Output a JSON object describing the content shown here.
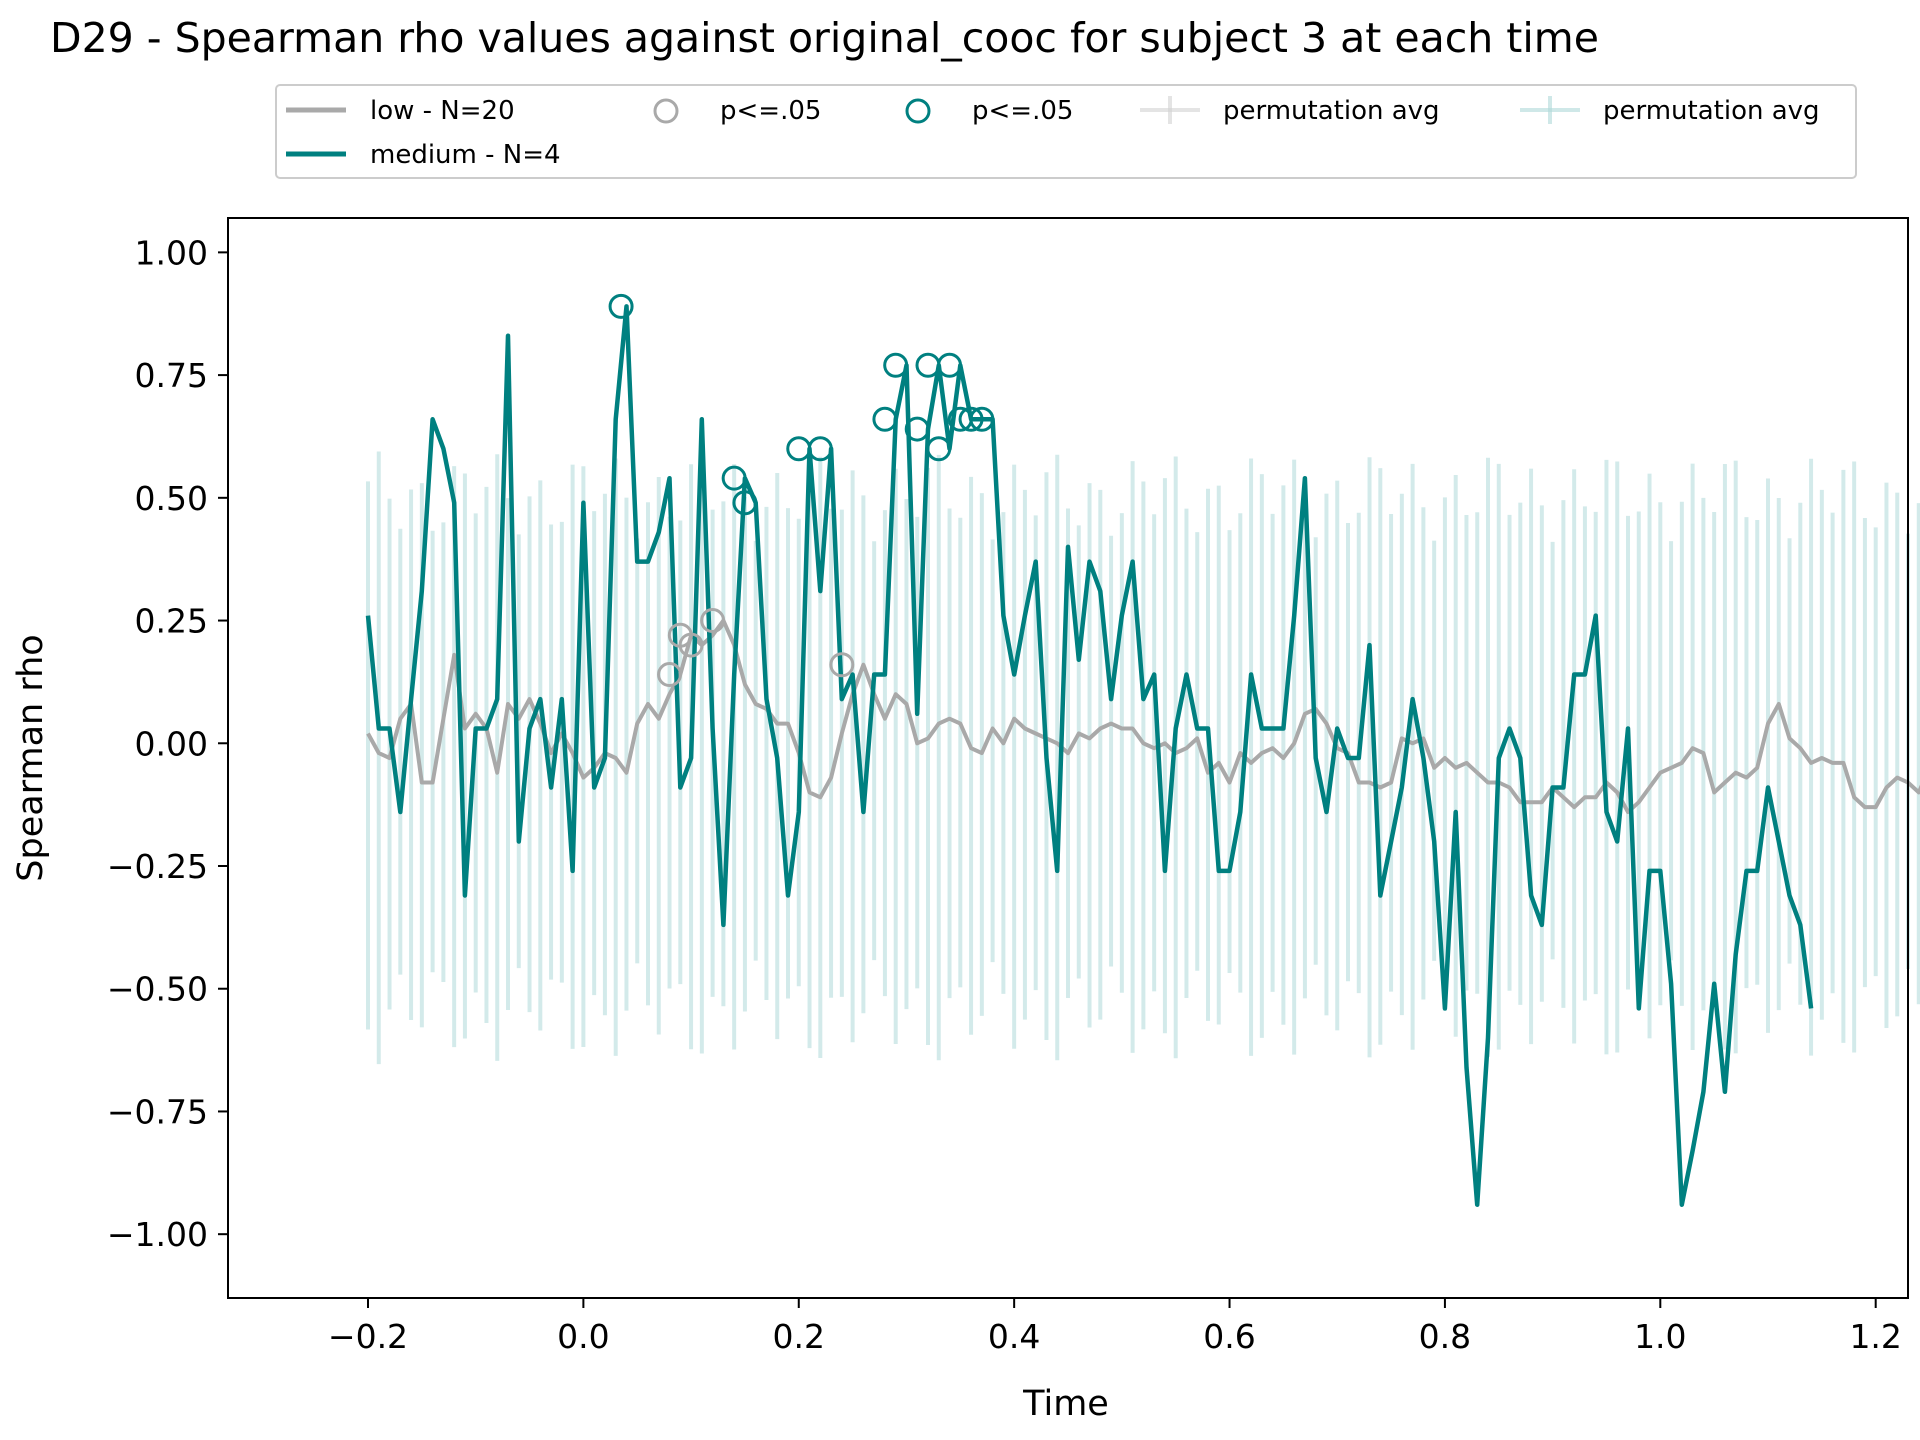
{
  "chart_data": {
    "type": "line",
    "title": "D29 - Spearman rho values against original_cooc for subject 3 at each time",
    "xlabel": "Time",
    "ylabel": "Spearman rho",
    "xlim": [
      -0.33,
      1.23
    ],
    "ylim": [
      -1.13,
      1.07
    ],
    "xticks": [
      -0.2,
      0.0,
      0.2,
      0.4,
      0.6,
      0.8,
      1.0,
      1.2
    ],
    "yticks": [
      1.0,
      0.75,
      0.5,
      0.25,
      0.0,
      -0.25,
      -0.5,
      -0.75,
      -1.0
    ],
    "xtick_labels": [
      "−0.2",
      "0.0",
      "0.2",
      "0.4",
      "0.6",
      "0.8",
      "1.0",
      "1.2"
    ],
    "ytick_labels": [
      "1.00",
      "0.75",
      "0.50",
      "0.25",
      "0.00",
      "−0.25",
      "−0.50",
      "−0.75",
      "−1.00"
    ],
    "grid": false,
    "legend_placement": "top-center",
    "legend": [
      {
        "label": "low - N=20",
        "kind": "line",
        "color": "#a9a9a9"
      },
      {
        "label": "medium - N=4",
        "kind": "line",
        "color": "#008080"
      },
      {
        "label": "p<=.05",
        "kind": "marker",
        "color": "#a9a9a9"
      },
      {
        "label": "p<=.05",
        "kind": "marker",
        "color": "#008080"
      },
      {
        "label": "permutation avg",
        "kind": "errorbar",
        "color": "#d3d3d3"
      },
      {
        "label": "permutation avg",
        "kind": "errorbar",
        "color": "#b0dada"
      }
    ],
    "x_start": -0.2,
    "x_step": 0.01,
    "series": [
      {
        "name": "low - N=20",
        "color": "#a9a9a9",
        "values": [
          0.02,
          -0.02,
          -0.03,
          0.05,
          0.08,
          -0.08,
          -0.08,
          0.05,
          0.18,
          0.03,
          0.06,
          0.03,
          -0.06,
          0.08,
          0.05,
          0.09,
          0.04,
          -0.02,
          0.02,
          -0.02,
          -0.07,
          -0.05,
          -0.02,
          -0.03,
          -0.06,
          0.04,
          0.08,
          0.05,
          0.1,
          0.14,
          0.22,
          0.2,
          0.22,
          0.25,
          0.2,
          0.12,
          0.08,
          0.07,
          0.04,
          0.04,
          -0.02,
          -0.1,
          -0.11,
          -0.07,
          0.02,
          0.1,
          0.16,
          0.1,
          0.05,
          0.1,
          0.08,
          0.0,
          0.01,
          0.04,
          0.05,
          0.04,
          -0.01,
          -0.02,
          0.03,
          0.0,
          0.05,
          0.03,
          0.02,
          0.01,
          0.0,
          -0.02,
          0.02,
          0.01,
          0.03,
          0.04,
          0.03,
          0.03,
          0.0,
          -0.01,
          0.0,
          -0.02,
          -0.01,
          0.01,
          -0.06,
          -0.04,
          -0.08,
          -0.02,
          -0.04,
          -0.02,
          -0.01,
          -0.03,
          0.0,
          0.06,
          0.07,
          0.04,
          -0.01,
          -0.02,
          -0.08,
          -0.08,
          -0.09,
          -0.08,
          0.01,
          0.0,
          0.01,
          -0.05,
          -0.03,
          -0.05,
          -0.04,
          -0.06,
          -0.08,
          -0.08,
          -0.09,
          -0.12,
          -0.12,
          -0.12,
          -0.09,
          -0.11,
          -0.13,
          -0.11,
          -0.11,
          -0.08,
          -0.1,
          -0.14,
          -0.12,
          -0.09,
          -0.06,
          -0.05,
          -0.04,
          -0.01,
          -0.02,
          -0.1,
          -0.08,
          -0.06,
          -0.07,
          -0.05,
          0.04,
          0.08,
          0.01,
          -0.01,
          -0.04,
          -0.03,
          -0.04,
          -0.04,
          -0.11,
          -0.13,
          -0.13,
          -0.09,
          -0.07,
          -0.08,
          -0.1,
          -0.05
        ]
      },
      {
        "name": "medium - N=4",
        "color": "#008080",
        "values": [
          0.26,
          0.03,
          0.03,
          -0.14,
          0.09,
          0.31,
          0.66,
          0.6,
          0.49,
          -0.31,
          0.03,
          0.03,
          0.09,
          0.83,
          -0.2,
          0.03,
          0.09,
          -0.09,
          0.09,
          -0.26,
          0.49,
          -0.09,
          -0.03,
          0.66,
          0.89,
          0.37,
          0.37,
          0.43,
          0.54,
          -0.09,
          -0.03,
          0.66,
          0.03,
          -0.37,
          0.14,
          0.54,
          0.49,
          0.09,
          -0.03,
          -0.31,
          -0.14,
          0.6,
          0.31,
          0.6,
          0.09,
          0.14,
          -0.14,
          0.14,
          0.14,
          0.66,
          0.77,
          0.06,
          0.64,
          0.77,
          0.6,
          0.77,
          0.66,
          0.66,
          0.66,
          0.26,
          0.14,
          0.26,
          0.37,
          -0.03,
          -0.26,
          0.4,
          0.17,
          0.37,
          0.31,
          0.09,
          0.26,
          0.37,
          0.09,
          0.14,
          -0.26,
          0.03,
          0.14,
          0.03,
          0.03,
          -0.26,
          -0.26,
          -0.14,
          0.14,
          0.03,
          0.03,
          0.03,
          0.26,
          0.54,
          -0.03,
          -0.14,
          0.03,
          -0.03,
          -0.03,
          0.2,
          -0.31,
          -0.2,
          -0.09,
          0.09,
          -0.03,
          -0.2,
          -0.54,
          -0.14,
          -0.66,
          -0.94,
          -0.6,
          -0.03,
          0.03,
          -0.03,
          -0.31,
          -0.37,
          -0.09,
          -0.09,
          0.14,
          0.14,
          0.26,
          -0.14,
          -0.2,
          0.03,
          -0.54,
          -0.26,
          -0.26,
          -0.49,
          -0.94,
          -0.83,
          -0.71,
          -0.49,
          -0.71,
          -0.43,
          -0.26,
          -0.26,
          -0.09,
          -0.2,
          -0.31,
          -0.37,
          -0.54
        ]
      }
    ],
    "significant_markers": [
      {
        "series": "low - N=20",
        "color": "#a9a9a9",
        "points": [
          [
            0.08,
            0.14
          ],
          [
            0.09,
            0.22
          ],
          [
            0.1,
            0.2
          ],
          [
            0.12,
            0.25
          ],
          [
            0.24,
            0.16
          ]
        ]
      },
      {
        "series": "medium - N=4",
        "color": "#008080",
        "points": [
          [
            0.035,
            0.89
          ],
          [
            0.14,
            0.54
          ],
          [
            0.15,
            0.49
          ],
          [
            0.2,
            0.6
          ],
          [
            0.22,
            0.6
          ],
          [
            0.28,
            0.66
          ],
          [
            0.29,
            0.77
          ],
          [
            0.31,
            0.64
          ],
          [
            0.32,
            0.77
          ],
          [
            0.33,
            0.6
          ],
          [
            0.34,
            0.77
          ],
          [
            0.35,
            0.66
          ],
          [
            0.36,
            0.66
          ],
          [
            0.37,
            0.66
          ]
        ]
      }
    ]
  }
}
